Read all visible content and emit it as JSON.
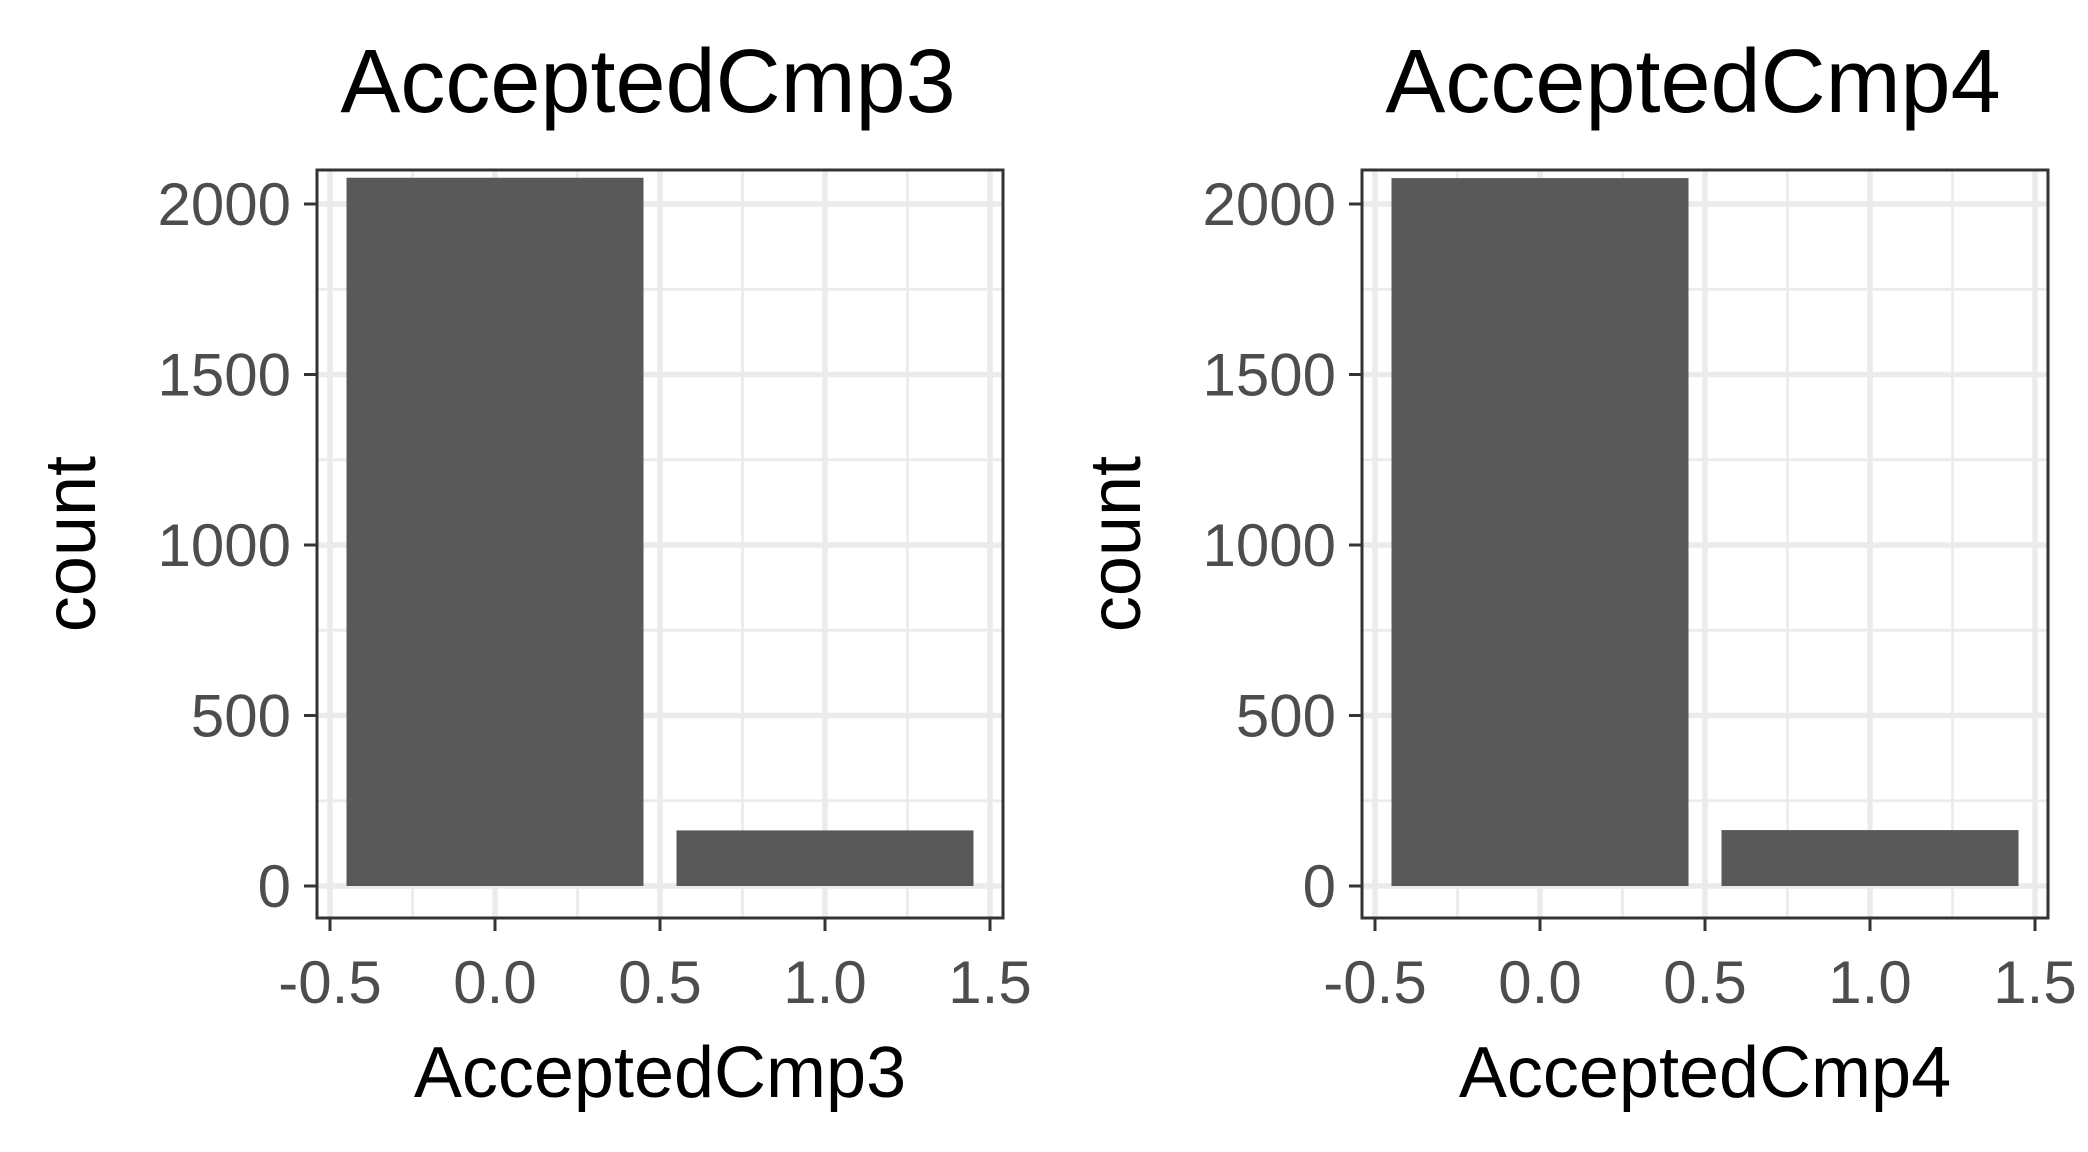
{
  "chart_data": [
    {
      "type": "bar",
      "title": "AcceptedCmp3",
      "xlabel": "AcceptedCmp3",
      "ylabel": "count",
      "x": [
        0,
        1
      ],
      "values": [
        2077,
        163
      ],
      "bar_width": 0.9,
      "xlim": [
        -0.5,
        1.5
      ],
      "ylim": [
        0,
        2000
      ],
      "xticks": [
        -0.5,
        0.0,
        0.5,
        1.0,
        1.5
      ],
      "xtick_labels": [
        "-0.5",
        "0.0",
        "0.5",
        "1.0",
        "1.5"
      ],
      "yticks": [
        0,
        500,
        1000,
        1500,
        2000
      ],
      "ytick_labels": [
        "0",
        "500",
        "1000",
        "1500",
        "2000"
      ],
      "bar_color": "#595959",
      "grid": true,
      "legend": "none"
    },
    {
      "type": "bar",
      "title": "AcceptedCmp4",
      "xlabel": "AcceptedCmp4",
      "ylabel": "count",
      "x": [
        0,
        1
      ],
      "values": [
        2076,
        164
      ],
      "bar_width": 0.9,
      "xlim": [
        -0.5,
        1.5
      ],
      "ylim": [
        0,
        2000
      ],
      "xticks": [
        -0.5,
        0.0,
        0.5,
        1.0,
        1.5
      ],
      "xtick_labels": [
        "-0.5",
        "0.0",
        "0.5",
        "1.0",
        "1.5"
      ],
      "yticks": [
        0,
        500,
        1000,
        1500,
        2000
      ],
      "ytick_labels": [
        "0",
        "500",
        "1000",
        "1500",
        "2000"
      ],
      "bar_color": "#595959",
      "grid": true,
      "legend": "none"
    }
  ]
}
